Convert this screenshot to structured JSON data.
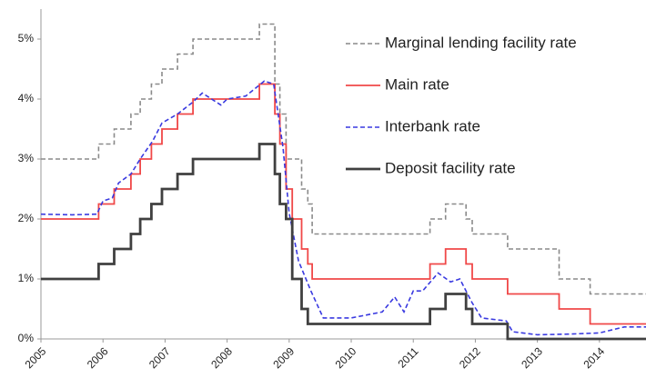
{
  "chart_data": {
    "type": "line",
    "xlim": [
      2005,
      2014.75
    ],
    "xticks": [
      2005,
      2006,
      2007,
      2008,
      2009,
      2010,
      2011,
      2012,
      2013,
      2014
    ],
    "ylim": [
      0,
      5.5
    ],
    "yticks": [
      {
        "value": 0,
        "label": "0%"
      },
      {
        "value": 1,
        "label": "1%"
      },
      {
        "value": 2,
        "label": "2%"
      },
      {
        "value": 3,
        "label": "3%"
      },
      {
        "value": 4,
        "label": "4%"
      },
      {
        "value": 5,
        "label": "5%"
      }
    ],
    "grid": false,
    "legend": "upper right",
    "series": [
      {
        "name": "Marginal lending facility rate",
        "color": "#8a8a8a",
        "line_style": "dashed",
        "linewidth": 1.6,
        "x": [
          2005,
          2005.93,
          2005.93,
          2006.18,
          2006.18,
          2006.45,
          2006.45,
          2006.6,
          2006.6,
          2006.78,
          2006.78,
          2006.95,
          2006.95,
          2007.2,
          2007.2,
          2007.45,
          2007.45,
          2008.52,
          2008.52,
          2008.77,
          2008.77,
          2008.85,
          2008.85,
          2008.95,
          2008.95,
          2009.2,
          2009.2,
          2009.3,
          2009.3,
          2009.37,
          2009.37,
          2011.27,
          2011.27,
          2011.52,
          2011.52,
          2011.85,
          2011.85,
          2011.95,
          2011.95,
          2012.52,
          2012.52,
          2013.35,
          2013.35,
          2013.85,
          2013.85,
          2014.75
        ],
        "values": [
          3,
          3,
          3.25,
          3.25,
          3.5,
          3.5,
          3.75,
          3.75,
          4,
          4,
          4.25,
          4.25,
          4.5,
          4.5,
          4.75,
          4.75,
          5,
          5,
          5.25,
          5.25,
          4.25,
          4.25,
          3.75,
          3.75,
          3,
          3,
          2.5,
          2.5,
          2.25,
          2.25,
          1.75,
          1.75,
          2,
          2,
          2.25,
          2.25,
          2,
          2,
          1.75,
          1.75,
          1.5,
          1.5,
          1,
          1,
          0.75,
          0.75
        ]
      },
      {
        "name": "Main rate",
        "color": "#f04848",
        "line_style": "solid",
        "linewidth": 1.8,
        "x": [
          2005,
          2005.93,
          2005.93,
          2006.18,
          2006.18,
          2006.45,
          2006.45,
          2006.6,
          2006.6,
          2006.78,
          2006.78,
          2006.95,
          2006.95,
          2007.2,
          2007.2,
          2007.45,
          2007.45,
          2008.52,
          2008.52,
          2008.77,
          2008.77,
          2008.85,
          2008.85,
          2008.95,
          2008.95,
          2009.05,
          2009.05,
          2009.2,
          2009.2,
          2009.3,
          2009.3,
          2009.37,
          2009.37,
          2011.27,
          2011.27,
          2011.52,
          2011.52,
          2011.85,
          2011.85,
          2011.95,
          2011.95,
          2012.52,
          2012.52,
          2013.35,
          2013.35,
          2013.85,
          2013.85,
          2014.75
        ],
        "values": [
          2,
          2,
          2.25,
          2.25,
          2.5,
          2.5,
          2.75,
          2.75,
          3,
          3,
          3.25,
          3.25,
          3.5,
          3.5,
          3.75,
          3.75,
          4,
          4,
          4.25,
          4.25,
          3.75,
          3.75,
          3.25,
          3.25,
          2.5,
          2.5,
          2,
          2,
          1.5,
          1.5,
          1.25,
          1.25,
          1,
          1,
          1.25,
          1.25,
          1.5,
          1.5,
          1.25,
          1.25,
          1,
          1,
          0.75,
          0.75,
          0.5,
          0.5,
          0.25,
          0.25
        ]
      },
      {
        "name": "Interbank rate",
        "color": "#3a3ae0",
        "line_style": "dashed",
        "linewidth": 1.6,
        "x": [
          2005,
          2005.5,
          2005.9,
          2006,
          2006.15,
          2006.25,
          2006.45,
          2006.6,
          2006.8,
          2006.95,
          2007.2,
          2007.45,
          2007.6,
          2007.9,
          2008.0,
          2008.3,
          2008.6,
          2008.75,
          2008.9,
          2009.0,
          2009.15,
          2009.35,
          2009.55,
          2010.0,
          2010.5,
          2010.7,
          2010.85,
          2011.0,
          2011.15,
          2011.4,
          2011.6,
          2011.75,
          2011.95,
          2012.1,
          2012.5,
          2012.6,
          2013.0,
          2013.5,
          2014.0,
          2014.4,
          2014.75
        ],
        "values": [
          2.08,
          2.07,
          2.08,
          2.3,
          2.35,
          2.6,
          2.75,
          3.0,
          3.3,
          3.6,
          3.75,
          3.95,
          4.1,
          3.9,
          4.0,
          4.05,
          4.3,
          4.25,
          3.2,
          2.1,
          1.3,
          0.8,
          0.35,
          0.35,
          0.45,
          0.7,
          0.45,
          0.8,
          0.8,
          1.1,
          0.95,
          1.0,
          0.6,
          0.35,
          0.3,
          0.12,
          0.07,
          0.08,
          0.1,
          0.2,
          0.2
        ]
      },
      {
        "name": "Deposit facility rate",
        "color": "#404040",
        "line_style": "solid",
        "linewidth": 2.8,
        "x": [
          2005,
          2005.93,
          2005.93,
          2006.18,
          2006.18,
          2006.45,
          2006.45,
          2006.6,
          2006.6,
          2006.78,
          2006.78,
          2006.95,
          2006.95,
          2007.2,
          2007.2,
          2007.45,
          2007.45,
          2008.52,
          2008.52,
          2008.77,
          2008.77,
          2008.85,
          2008.85,
          2008.95,
          2008.95,
          2009.05,
          2009.05,
          2009.2,
          2009.2,
          2009.3,
          2009.3,
          2011.27,
          2011.27,
          2011.52,
          2011.52,
          2011.85,
          2011.85,
          2011.95,
          2011.95,
          2012.52,
          2012.52,
          2014.75
        ],
        "values": [
          1,
          1,
          1.25,
          1.25,
          1.5,
          1.5,
          1.75,
          1.75,
          2,
          2,
          2.25,
          2.25,
          2.5,
          2.5,
          2.75,
          2.75,
          3,
          3,
          3.25,
          3.25,
          2.75,
          2.75,
          2.25,
          2.25,
          2,
          2,
          1,
          1,
          0.5,
          0.5,
          0.25,
          0.25,
          0.5,
          0.5,
          0.75,
          0.75,
          0.5,
          0.5,
          0.25,
          0.25,
          0,
          0
        ]
      }
    ]
  }
}
